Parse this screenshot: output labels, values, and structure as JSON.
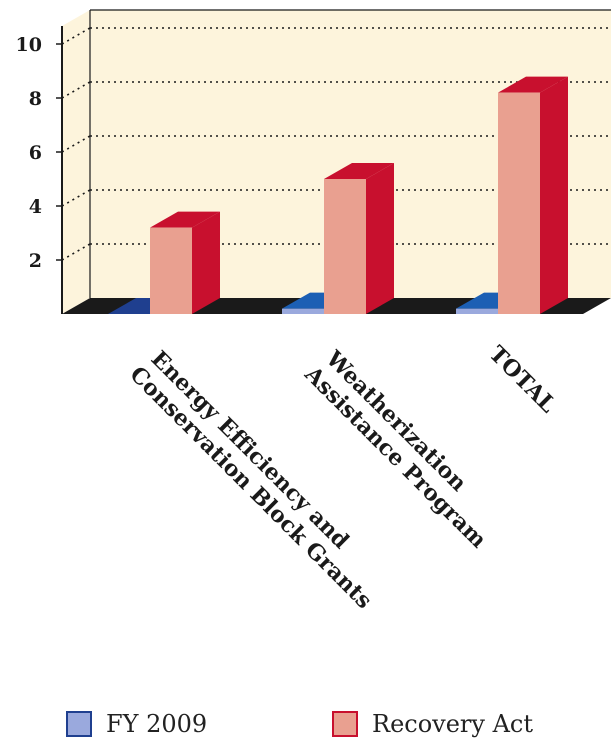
{
  "chart_data": {
    "type": "bar",
    "categories": [
      [
        "Energy Efficiency and",
        "Conservation Block Grants"
      ],
      [
        "Weatherization",
        "Assistance Program"
      ],
      [
        "TOTAL"
      ]
    ],
    "series": [
      {
        "name": "FY 2009",
        "values": [
          0.0,
          0.2,
          0.2
        ]
      },
      {
        "name": "Recovery Act",
        "values": [
          3.2,
          5.0,
          8.2
        ]
      }
    ],
    "y_ticks": [
      "2",
      "4",
      "6",
      "8",
      "10"
    ],
    "ylim": [
      0,
      10
    ],
    "grid": true,
    "legend_position": "bottom"
  },
  "legend": {
    "fy2009_label": "FY 2009",
    "recovery_label": "Recovery Act"
  },
  "colors": {
    "wall": "#fdf4dc",
    "floor": "#1a1a1a",
    "fy2009_front": "#9aa9dd",
    "fy2009_top": "#1c5fb4",
    "fy2009_side": "#1f3f8f",
    "recovery_front": "#e9a090",
    "recovery_top": "#c8102e",
    "recovery_side": "#c8102e"
  }
}
